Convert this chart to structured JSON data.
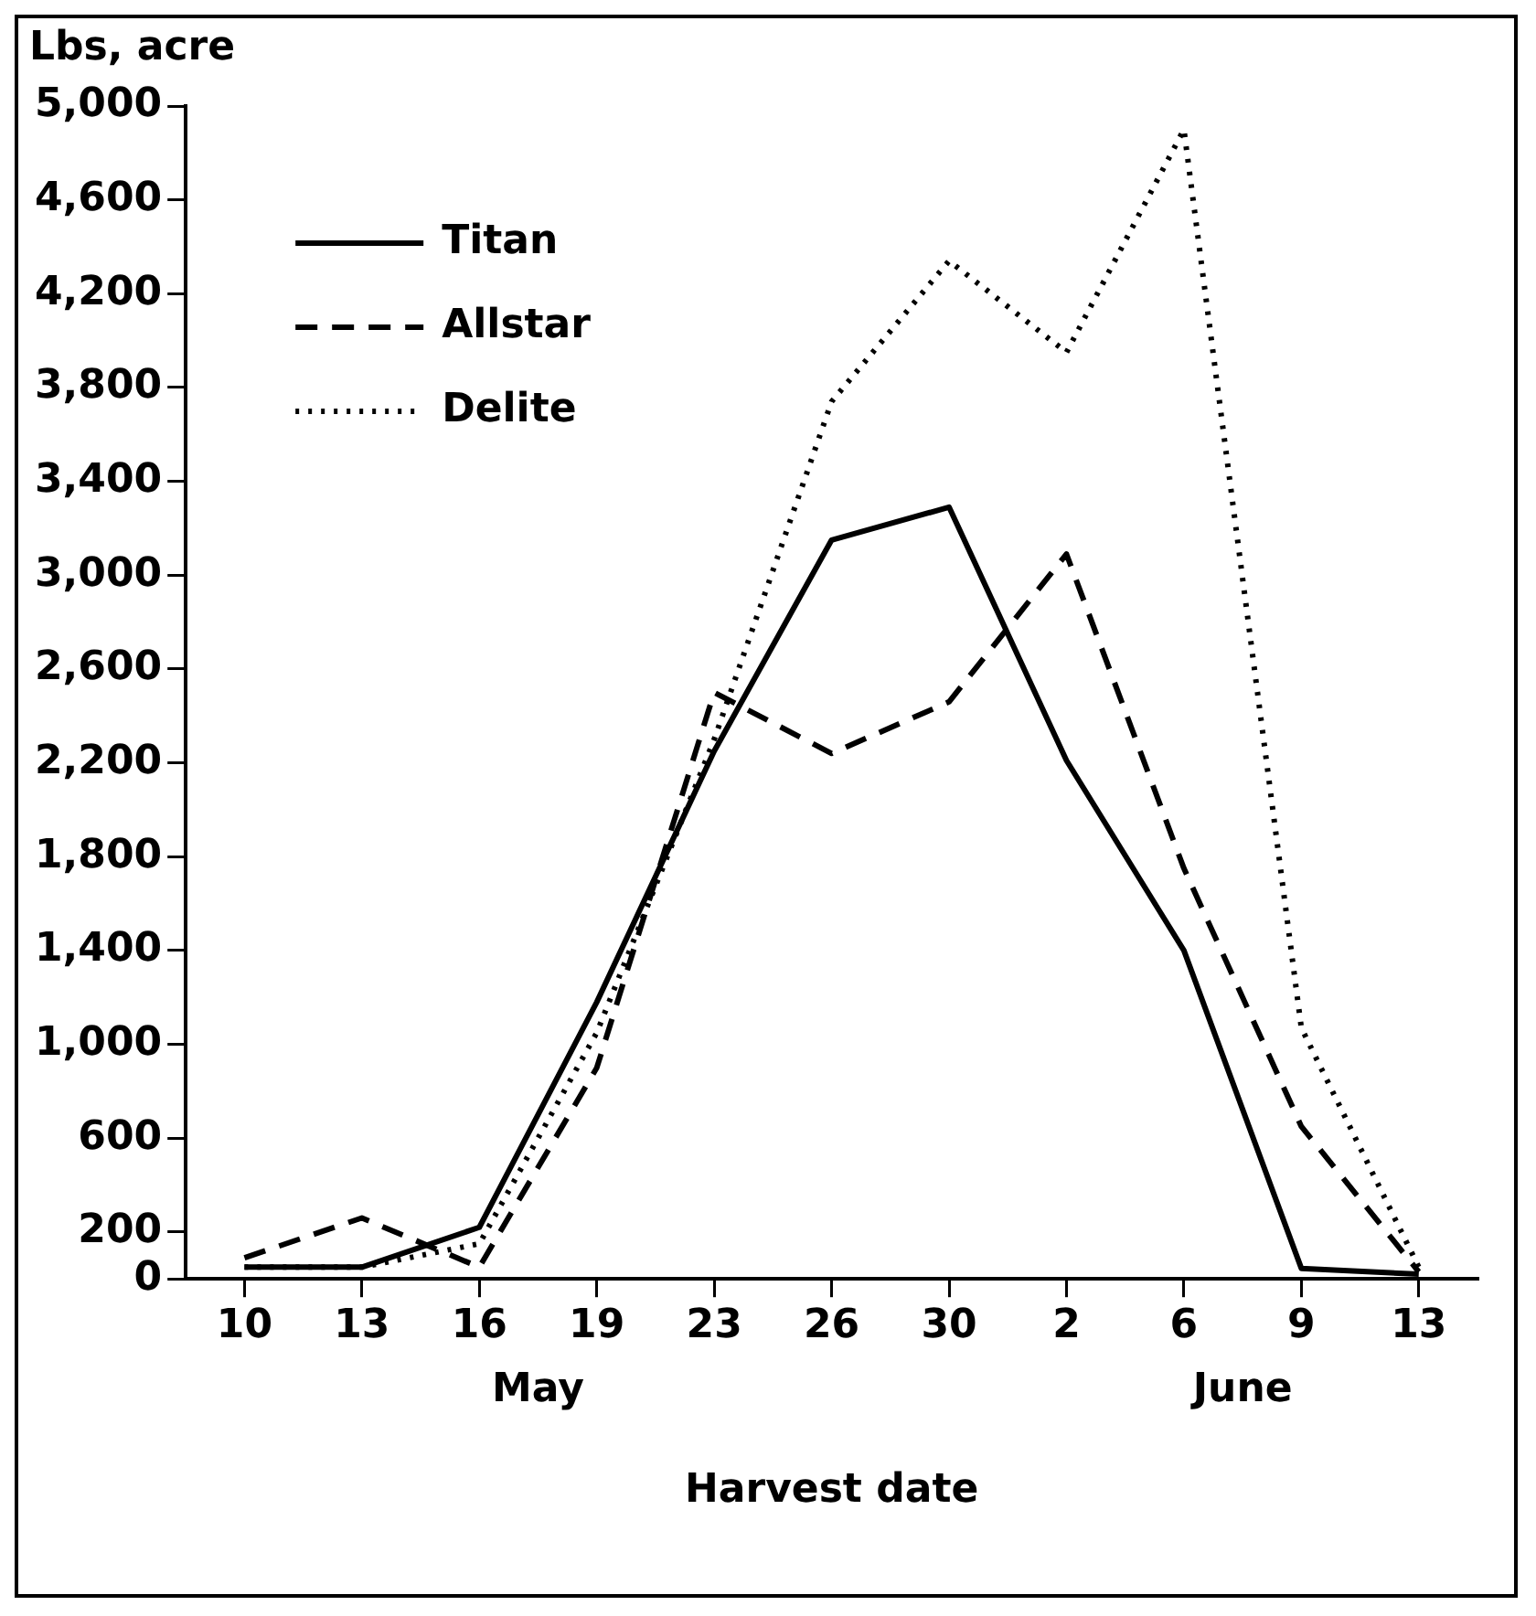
{
  "chart_data": {
    "type": "line",
    "ylabel": "Lbs, acre",
    "xlabel": "Harvest date",
    "categories": [
      "10",
      "13",
      "16",
      "19",
      "23",
      "26",
      "30",
      "2",
      "6",
      "9",
      "13"
    ],
    "series": [
      {
        "name": "Titan",
        "color": "#000000",
        "line_style": "solid",
        "values": [
          50,
          50,
          220,
          1180,
          2250,
          3150,
          3290,
          2210,
          1400,
          45,
          20
        ]
      },
      {
        "name": "Allstar",
        "color": "#000000",
        "line_style": "dashed",
        "values": [
          90,
          260,
          50,
          900,
          2500,
          2240,
          2460,
          3090,
          1750,
          650,
          30
        ]
      },
      {
        "name": "Delite",
        "color": "#000000",
        "line_style": "dotted",
        "values": [
          50,
          50,
          150,
          1050,
          2300,
          3740,
          4340,
          3950,
          4900,
          1070,
          50
        ]
      }
    ],
    "ylim": [
      0,
      5000
    ],
    "yticks": [
      0,
      200,
      600,
      {
        "value": 1000,
        "label": "1,000"
      },
      {
        "value": 1400,
        "label": "1,400"
      },
      {
        "value": 1800,
        "label": "1,800"
      },
      {
        "value": 2200,
        "label": "2,200"
      },
      {
        "value": 2600,
        "label": "2,600"
      },
      {
        "value": 3000,
        "label": "3,000"
      },
      {
        "value": 3400,
        "label": "3,400"
      },
      {
        "value": 3800,
        "label": "3,800"
      },
      {
        "value": 4200,
        "label": "4,200"
      },
      {
        "value": 4600,
        "label": "4,600"
      },
      {
        "value": 5000,
        "label": "5,000"
      }
    ],
    "tick_labels": "xy",
    "grid": false,
    "legend": "top left",
    "marker": "none",
    "annotations": [
      "May",
      "June"
    ]
  }
}
